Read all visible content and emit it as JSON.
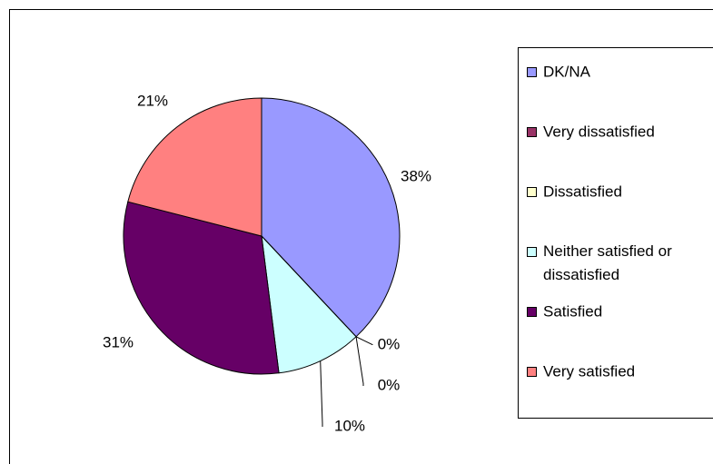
{
  "chart_data": {
    "type": "pie",
    "categories": [
      "DK/NA",
      "Very dissatisfied",
      "Dissatisfied",
      "Neither satisfied or dissatisfied",
      "Satisfied",
      "Very satisfied"
    ],
    "values": [
      38,
      0,
      0,
      10,
      31,
      21
    ],
    "value_labels": [
      "38%",
      "0%",
      "0%",
      "10%",
      "31%",
      "21%"
    ],
    "colors": [
      "#9999FF",
      "#993366",
      "#FFFFCC",
      "#CCFFFF",
      "#660066",
      "#FF8080"
    ],
    "legend": "right"
  }
}
